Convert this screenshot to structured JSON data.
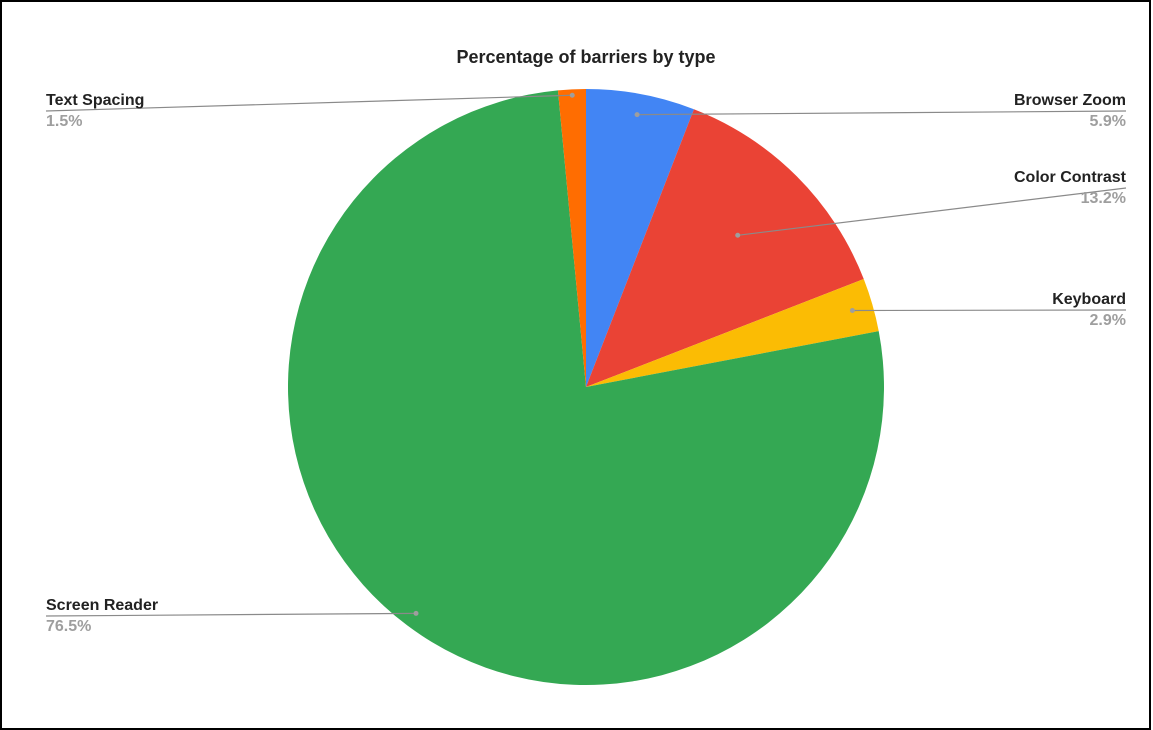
{
  "chart_data": {
    "type": "pie",
    "title": "Percentage of barriers by type",
    "slices": [
      {
        "label": "Browser Zoom",
        "value": 5.9,
        "display": "5.9%",
        "color": "#4285F4"
      },
      {
        "label": "Color Contrast",
        "value": 13.2,
        "display": "13.2%",
        "color": "#EA4335"
      },
      {
        "label": "Keyboard",
        "value": 2.9,
        "display": "2.9%",
        "color": "#FBBC04"
      },
      {
        "label": "Screen Reader",
        "value": 76.5,
        "display": "76.5%",
        "color": "#34A853"
      },
      {
        "label": "Text Spacing",
        "value": 1.5,
        "display": "1.5%",
        "color": "#FF6D01"
      }
    ],
    "start_angle": "12 o'clock",
    "direction": "clockwise",
    "labels": "outside with leader lines"
  }
}
